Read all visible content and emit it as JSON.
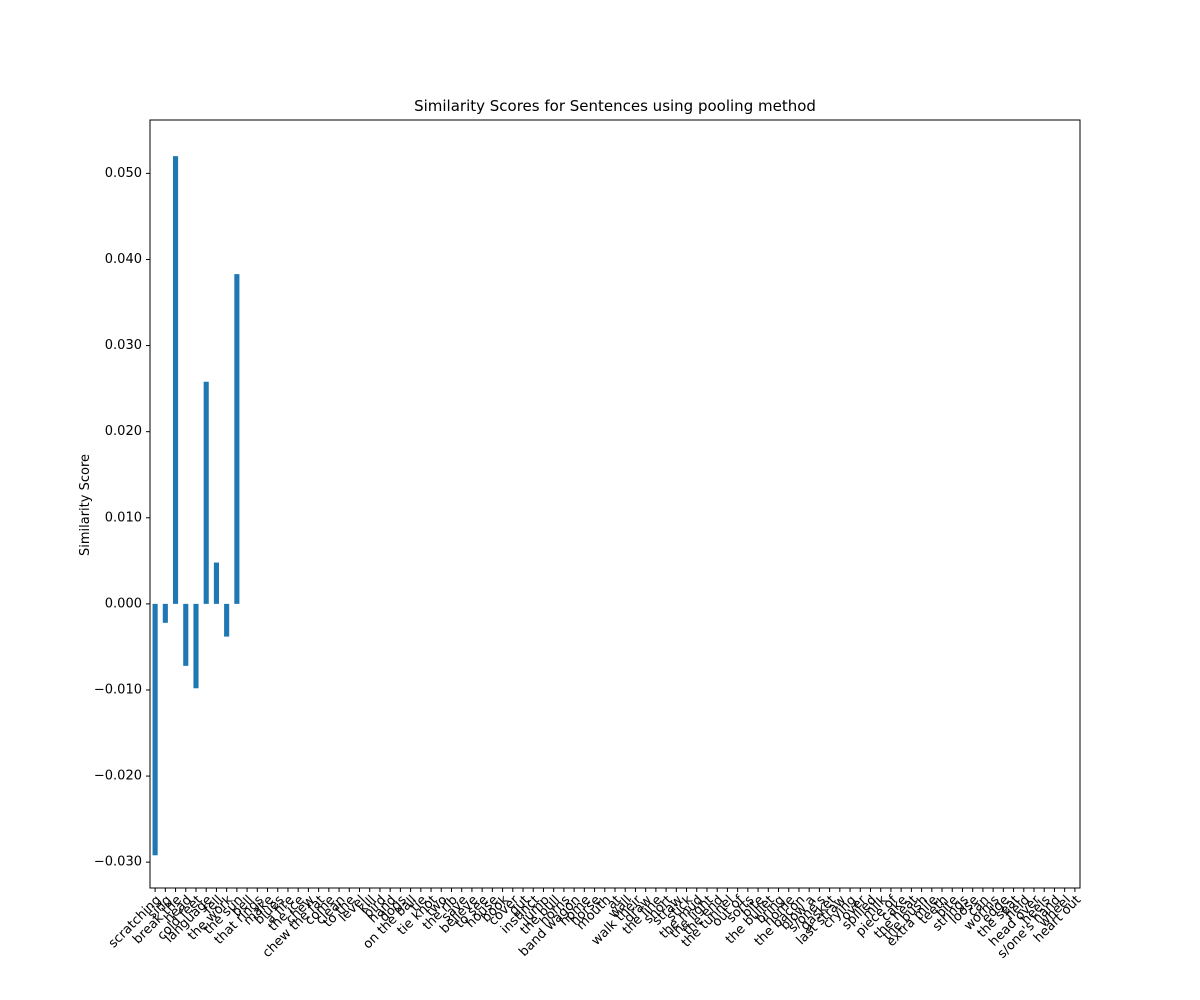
{
  "chart_data": {
    "type": "bar",
    "title": "Similarity Scores for Sentences using pooling method",
    "ylabel": "Similarity Score",
    "color": "#1f77b4",
    "categories": [
      "scratching",
      "sing",
      "break the",
      "head",
      "cold feet",
      "language",
      "fell",
      "the work",
      "the sun",
      "bell",
      "that rings",
      "make",
      "blues",
      "a fire",
      "the ice",
      "chew",
      "chew the fat",
      "come",
      "clean",
      "to the",
      "level",
      "kill",
      "bird",
      "hand",
      "dogs",
      "on the ball",
      "tie",
      "tie knot",
      "two",
      "the rib",
      "save",
      "believe",
      "to see",
      "house",
      "book",
      "cover",
      "gut",
      "instinct",
      "jump",
      "the bull",
      "horns",
      "band wagon",
      "home",
      "horse",
      "mouth",
      "at",
      "wall",
      "walk their",
      "draw",
      "the line",
      "short",
      "straw",
      "stick",
      "the mud",
      "the light",
      "the end",
      "the tunnel",
      "out of",
      "sorts",
      "bite",
      "the bullet",
      "bring",
      "home",
      "the bacon",
      "blow a",
      "s/one's",
      "gasket",
      "last straw",
      "crying",
      "over",
      "spilled",
      "milk",
      "piece of",
      "cake",
      "the heat",
      "the bush",
      "extra mile",
      "teeth",
      "bite",
      "strings",
      "loose",
      "can",
      "worms",
      "edge",
      "the seat",
      "field",
      "head over",
      "heels",
      "s/one's hand",
      "wheel",
      "heart out"
    ],
    "values": [
      -0.0292,
      -0.0022,
      0.052,
      -0.0072,
      -0.0098,
      0.0258,
      0.0048,
      -0.0038,
      0.0383,
      0,
      0,
      0,
      0,
      0,
      0,
      0,
      0,
      0,
      0,
      0,
      0,
      0,
      0,
      0,
      0,
      0,
      0,
      0,
      0,
      0,
      0,
      0,
      0,
      0,
      0,
      0,
      0,
      0,
      0,
      0,
      0,
      0,
      0,
      0,
      0,
      0,
      0,
      0,
      0,
      0,
      0,
      0,
      0,
      0,
      0,
      0,
      0,
      0,
      0,
      0,
      0,
      0,
      0,
      0,
      0,
      0,
      0,
      0,
      0,
      0,
      0,
      0,
      0,
      0,
      0,
      0,
      0,
      0,
      0,
      0,
      0,
      0,
      0,
      0,
      0,
      0,
      0,
      0,
      0,
      0,
      0
    ],
    "ylim": [
      -0.033,
      0.0562
    ],
    "yticks": [
      {
        "value": -0.03,
        "label": "−0.030"
      },
      {
        "value": -0.02,
        "label": "−0.020"
      },
      {
        "value": -0.01,
        "label": "−0.010"
      },
      {
        "value": 0,
        "label": "0.000"
      },
      {
        "value": 0.01,
        "label": "0.010"
      },
      {
        "value": 0.02,
        "label": "0.020"
      },
      {
        "value": 0.03,
        "label": "0.030"
      },
      {
        "value": 0.04,
        "label": "0.040"
      },
      {
        "value": 0.05,
        "label": "0.050"
      }
    ],
    "grid": false
  }
}
